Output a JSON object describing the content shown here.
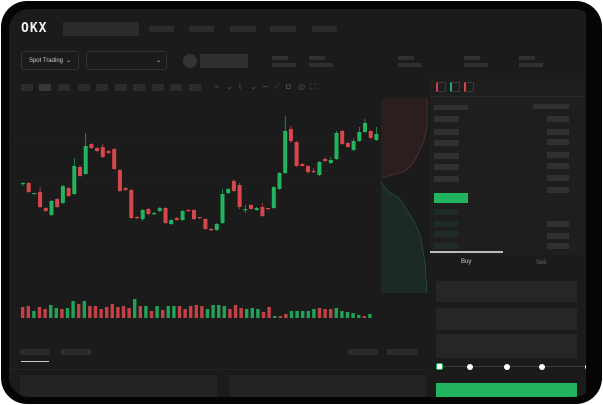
{
  "brand": {
    "logo": "OKX"
  },
  "header": {
    "nav_count": 5
  },
  "market_bar": {
    "mode_label": "Spot Trading",
    "mode_icon": "chevron-down-icon",
    "pair_icon": "chevron-down-icon"
  },
  "toolbar": {
    "icons": [
      "candle-type-icon",
      "chevron-down-icon",
      "indicator-icon",
      "chevron-down-icon",
      "line-tool-icon",
      "ruler-icon",
      "camera-icon",
      "settings-icon",
      "fullscreen-icon"
    ]
  },
  "orderbook": {
    "view_icons": [
      "orderbook-both-icon",
      "orderbook-bids-icon",
      "orderbook-asks-icon"
    ]
  },
  "trade": {
    "tabs": [
      {
        "label": "Buy"
      },
      {
        "label": "Sell"
      }
    ],
    "active_tab": "Buy",
    "slider_percent": 0,
    "slider_stops": [
      0,
      25,
      50,
      75,
      100
    ]
  },
  "colors": {
    "up": "#22b35e",
    "down": "#d6474b",
    "bg": "#1b1b1b",
    "panel": "#1e1e1e"
  },
  "chart_data": {
    "type": "candlestick",
    "candles": [
      [
        118,
        118,
        119,
        115
      ],
      [
        118,
        109,
        119,
        108
      ],
      [
        107,
        108,
        108,
        107
      ],
      [
        109,
        94,
        114,
        93
      ],
      [
        93,
        90,
        94,
        89
      ],
      [
        86,
        100,
        101,
        85
      ],
      [
        102,
        94,
        103,
        93
      ],
      [
        98,
        115,
        116,
        97
      ],
      [
        113,
        105,
        114,
        104
      ],
      [
        107,
        135,
        143,
        106
      ],
      [
        134,
        125,
        136,
        124
      ],
      [
        127,
        155,
        168,
        126
      ],
      [
        157,
        153,
        158,
        152
      ],
      [
        153,
        150,
        154,
        149
      ],
      [
        154,
        144,
        157,
        143
      ],
      [
        150,
        148,
        151,
        147
      ],
      [
        152,
        132,
        153,
        131
      ],
      [
        131,
        110,
        132,
        109
      ],
      [
        113,
        111,
        114,
        110
      ],
      [
        111,
        83,
        112,
        82
      ],
      [
        84,
        83,
        85,
        82
      ],
      [
        82,
        91,
        92,
        80
      ],
      [
        92,
        87,
        93,
        86
      ],
      [
        87,
        88,
        89,
        86
      ],
      [
        90,
        93,
        94,
        89
      ],
      [
        93,
        78,
        94,
        77
      ],
      [
        77,
        81,
        82,
        76
      ],
      [
        83,
        81,
        84,
        80
      ],
      [
        81,
        90,
        91,
        80
      ],
      [
        91,
        90,
        92,
        89
      ],
      [
        91,
        82,
        92,
        81
      ],
      [
        84,
        83,
        84,
        82
      ],
      [
        82,
        72,
        83,
        71
      ],
      [
        72,
        71,
        73,
        70
      ],
      [
        71,
        77,
        78,
        70
      ],
      [
        78,
        107,
        112,
        77
      ],
      [
        108,
        112,
        113,
        107
      ],
      [
        120,
        110,
        122,
        109
      ],
      [
        116,
        94,
        118,
        92
      ],
      [
        92,
        92,
        96,
        88
      ],
      [
        96,
        92,
        97,
        91
      ],
      [
        91,
        93,
        94,
        90
      ],
      [
        94,
        85,
        98,
        84
      ],
      [
        93,
        92,
        93,
        91
      ],
      [
        93,
        114,
        115,
        92
      ],
      [
        112,
        128,
        129,
        111
      ],
      [
        128,
        170,
        185,
        127
      ],
      [
        172,
        160,
        175,
        158
      ],
      [
        159,
        135,
        160,
        134
      ],
      [
        137,
        135,
        138,
        134
      ],
      [
        135,
        129,
        136,
        127
      ],
      [
        130,
        129,
        133,
        128
      ],
      [
        126,
        139,
        140,
        125
      ],
      [
        142,
        140,
        144,
        139
      ],
      [
        138,
        141,
        144,
        137
      ],
      [
        142,
        168,
        170,
        141
      ],
      [
        170,
        157,
        171,
        156
      ],
      [
        158,
        154,
        159,
        153
      ],
      [
        151,
        160,
        163,
        150
      ],
      [
        160,
        169,
        174,
        159
      ],
      [
        169,
        178,
        182,
        168
      ],
      [
        170,
        163,
        171,
        162
      ],
      [
        161,
        167,
        174,
        160
      ]
    ],
    "volume": [
      11,
      12,
      7,
      11,
      9,
      13,
      10,
      9,
      10,
      17,
      14,
      17,
      12,
      12,
      9,
      11,
      14,
      11,
      12,
      10,
      19,
      12,
      12,
      7,
      12,
      8,
      12,
      12,
      12,
      9,
      12,
      13,
      12,
      9,
      13,
      13,
      12,
      9,
      13,
      10,
      9,
      10,
      9,
      6,
      11,
      2,
      2,
      4,
      7,
      7,
      7,
      7,
      9,
      10,
      9,
      9,
      10,
      7,
      6,
      5,
      3,
      2,
      4
    ],
    "volume_dir": "rrgrrggrggrgrrrrrrrrgrgrgrggrrrrrggggrrrgggrrgrrgggggrrrgggggrg"
  }
}
